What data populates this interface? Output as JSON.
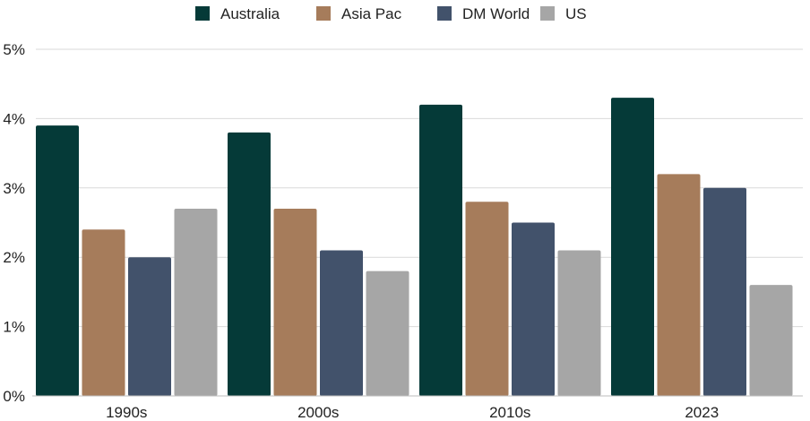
{
  "chart_data": {
    "type": "bar",
    "categories": [
      "1990s",
      "2000s",
      "2010s",
      "2023"
    ],
    "series": [
      {
        "name": "Australia",
        "color": "#053a38",
        "values": [
          3.9,
          3.8,
          4.2,
          4.3
        ]
      },
      {
        "name": "Asia Pac",
        "color": "#a67c5b",
        "values": [
          2.4,
          2.7,
          2.8,
          3.2
        ]
      },
      {
        "name": "DM World",
        "color": "#42526b",
        "values": [
          2.0,
          2.1,
          2.5,
          3.0
        ]
      },
      {
        "name": "US",
        "color": "#a6a6a6",
        "values": [
          2.7,
          1.8,
          2.1,
          1.6
        ]
      }
    ],
    "ylim": [
      0,
      5
    ],
    "yticks": [
      "0%",
      "1%",
      "2%",
      "3%",
      "4%",
      "5%"
    ],
    "grid": true,
    "legend_position": "top"
  }
}
